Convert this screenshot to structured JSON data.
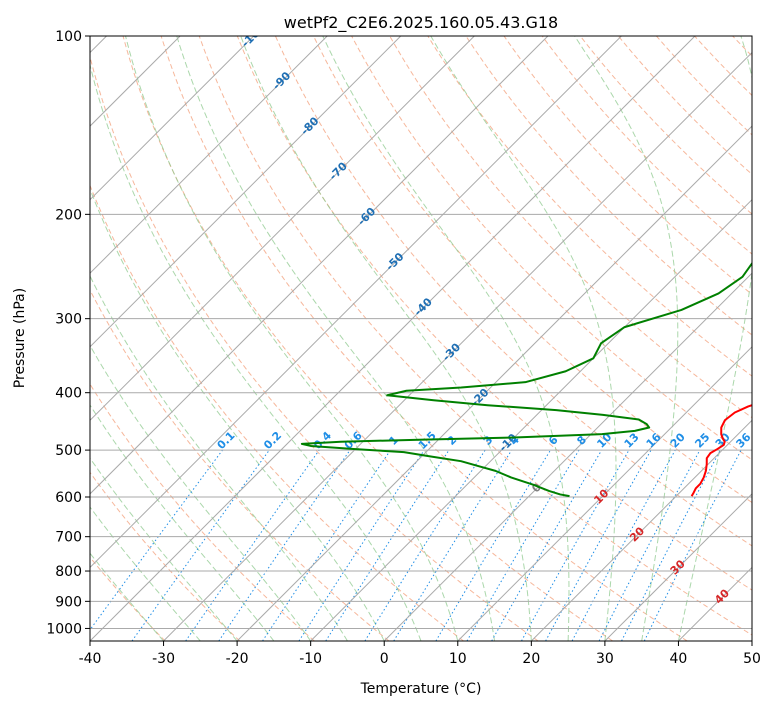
{
  "chart_data": {
    "type": "line",
    "title": "wetPf2_C2E6.2025.160.05.43.G18",
    "xlabel": "Temperature (°C)",
    "ylabel": "Pressure (hPa)",
    "xlim": [
      -40,
      50
    ],
    "ylim": [
      1050,
      100
    ],
    "yscale": "log",
    "grid": true,
    "x_ticks": [
      "-40",
      "-30",
      "-20",
      "-10",
      "0",
      "10",
      "20",
      "30",
      "40",
      "50"
    ],
    "y_ticks": [
      "100",
      "200",
      "300",
      "400",
      "500",
      "600",
      "700",
      "800",
      "900",
      "1000"
    ],
    "colors": {
      "temperature": "#ff0000",
      "dewpoint": "#008000",
      "isotherm": "#aaaaaa",
      "dry_adiabat": "#f4a582",
      "moist_adiabat": "#8fc98f",
      "mixing_ratio": "#1f8ee6",
      "dry_adiabat_label": "#d62728",
      "isotherm_label": "#1f6fb4",
      "zero_label": "#808080"
    },
    "series": [
      {
        "key": "temperature",
        "p": [
          100,
          103,
          106,
          110,
          114,
          118,
          121,
          124,
          127,
          130,
          136,
          142,
          148,
          155,
          163,
          172,
          183,
          195,
          208,
          222,
          238,
          255,
          272,
          290,
          310,
          330,
          350,
          368,
          384,
          396,
          404,
          410,
          415,
          422,
          432,
          445,
          458,
          470,
          478,
          484,
          490,
          498,
          506,
          516,
          528,
          542,
          556,
          570,
          580,
          590,
          598
        ],
        "t": [
          1.5,
          0.5,
          -1.0,
          -1.8,
          -2.3,
          -2.3,
          -2.0,
          -1.6,
          -1.0,
          -0.3,
          0.7,
          1.8,
          2.3,
          2.7,
          2.9,
          3.2,
          3.6,
          4.0,
          4.6,
          5.8,
          7.2,
          8.8,
          10.6,
          12.6,
          14.4,
          15.8,
          17.0,
          17.9,
          18.6,
          19.2,
          19.6,
          19.6,
          18.8,
          17.6,
          16.6,
          16.3,
          16.8,
          17.7,
          18.5,
          19.2,
          19.5,
          19.2,
          18.8,
          19.0,
          19.8,
          20.6,
          21.2,
          21.6,
          21.6,
          21.9,
          22.1
        ]
      },
      {
        "key": "dewpoint",
        "p": [
          100,
          103,
          106,
          110,
          114,
          118,
          121,
          124,
          127,
          130,
          136,
          142,
          148,
          155,
          163,
          172,
          183,
          195,
          208,
          222,
          238,
          255,
          272,
          290,
          310,
          330,
          350,
          368,
          384,
          392,
          397,
          404,
          412,
          420,
          428,
          436,
          444,
          452,
          458,
          464,
          470,
          476,
          480,
          484,
          488,
          492,
          498,
          504,
          512,
          522,
          532,
          542,
          556,
          572,
          586,
          594,
          598
        ],
        "t": [
          0.8,
          -0.2,
          -1.2,
          -1.8,
          -2.3,
          -2.3,
          -2.0,
          -1.8,
          -2.0,
          -2.6,
          -4.0,
          -6.5,
          -7.6,
          -7.2,
          -6.3,
          -5.6,
          -4.6,
          -3.6,
          -3.3,
          -2.7,
          -1.5,
          -0.8,
          -1.8,
          -4.6,
          -10.0,
          -11.0,
          -10.0,
          -12.0,
          -16.0,
          -24.0,
          -31.0,
          -33.0,
          -26.0,
          -18.0,
          -8.0,
          -1.0,
          4.5,
          6.2,
          7.0,
          5.5,
          1.5,
          -10.0,
          -22.0,
          -33.0,
          -38.0,
          -36.5,
          -30.0,
          -23.0,
          -19.0,
          -14.0,
          -11.0,
          -8.0,
          -5.0,
          -1.0,
          2.0,
          4.0,
          5.5
        ]
      }
    ],
    "isotherm_labels": [
      "-100",
      "-90",
      "-80",
      "-70",
      "-60",
      "-50",
      "-40",
      "-30",
      "-20",
      "-10",
      "0"
    ],
    "dry_adiabat_labels": [
      "10",
      "20",
      "30",
      "40"
    ],
    "mixing_ratio_labels": [
      "0.1",
      "0.2",
      "0.4",
      "0.6",
      "1",
      "1.5",
      "2",
      "3",
      "4",
      "6",
      "8",
      "10",
      "13",
      "16",
      "20",
      "25",
      "30",
      "36"
    ]
  }
}
